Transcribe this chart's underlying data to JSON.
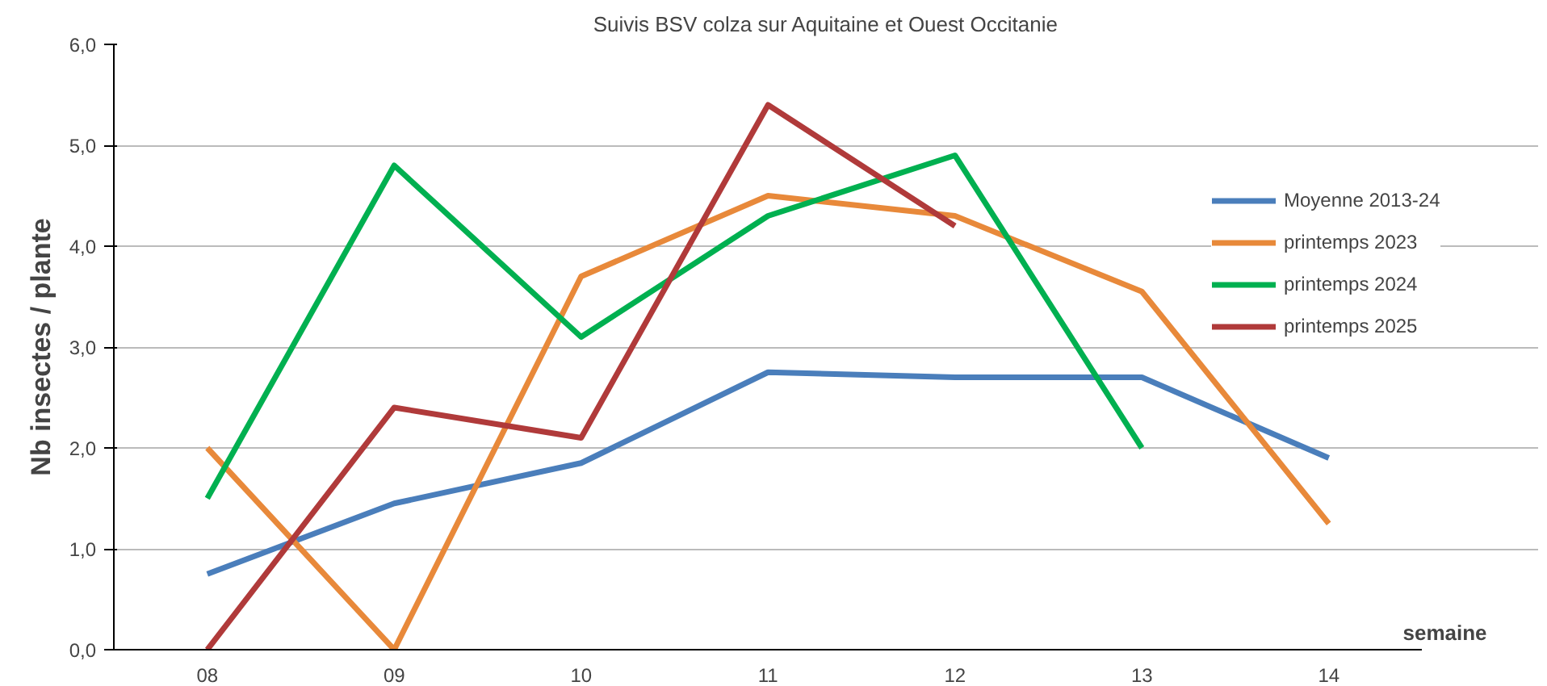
{
  "chart_data": {
    "type": "line",
    "title": "Suivis BSV colza sur Aquitaine et Ouest Occitanie",
    "xlabel": "semaine",
    "ylabel": "Nb insectes / plante",
    "categories": [
      "08",
      "09",
      "10",
      "11",
      "12",
      "13",
      "14"
    ],
    "ylim": [
      0,
      6
    ],
    "yticks": [
      {
        "value": 0,
        "label": "0,0"
      },
      {
        "value": 1,
        "label": "1,0"
      },
      {
        "value": 2,
        "label": "2,0"
      },
      {
        "value": 3,
        "label": "3,0"
      },
      {
        "value": 4,
        "label": "4,0"
      },
      {
        "value": 5,
        "label": "5,0"
      },
      {
        "value": 6,
        "label": "6,0"
      }
    ],
    "grid": "y",
    "legend": "right",
    "marker": "none",
    "line_style": "solid",
    "series": [
      {
        "name": "Moyenne 2013-24",
        "color": "#4a7ebb",
        "values": [
          0.75,
          1.45,
          1.85,
          2.75,
          2.7,
          2.7,
          1.9
        ]
      },
      {
        "name": "printemps 2023",
        "color": "#e8893a",
        "values": [
          2.0,
          0.0,
          3.7,
          4.5,
          4.3,
          3.55,
          1.25
        ]
      },
      {
        "name": "printemps 2024",
        "color": "#00b050",
        "values": [
          1.5,
          4.8,
          3.1,
          4.3,
          4.9,
          2.0,
          null
        ]
      },
      {
        "name": "printemps 2025",
        "color": "#b03a3a",
        "values": [
          0.0,
          2.4,
          2.1,
          5.4,
          4.2,
          null,
          null
        ]
      }
    ]
  }
}
